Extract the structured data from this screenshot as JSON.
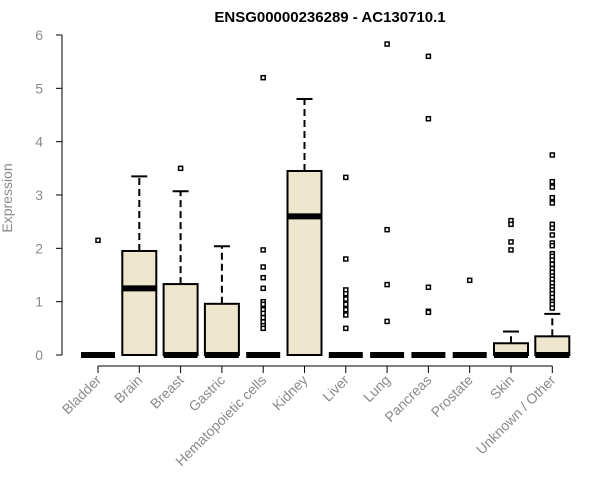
{
  "chart_data": {
    "type": "boxplot",
    "title": "ENSG00000236289 - AC130710.1",
    "xlabel": "",
    "ylabel": "Expression",
    "ylim": [
      0,
      6
    ],
    "yticks": [
      "0",
      "1",
      "2",
      "3",
      "4",
      "5",
      "6"
    ],
    "grid": false,
    "box_fill": "#ede6cc",
    "box_stroke": "#000000",
    "categories": [
      "Bladder",
      "Brain",
      "Breast",
      "Gastric",
      "Hematopoietic cells",
      "Kidney",
      "Liver",
      "Lung",
      "Pancreas",
      "Prostate",
      "Skin",
      "Unknown / Other"
    ],
    "boxes": [
      {
        "q1": 0,
        "median": 0,
        "q3": 0,
        "whisker_low": 0,
        "whisker_high": 0,
        "outliers": [
          2.15
        ]
      },
      {
        "q1": 0,
        "median": 1.25,
        "q3": 1.95,
        "whisker_low": 0,
        "whisker_high": 3.35,
        "outliers": []
      },
      {
        "q1": 0,
        "median": 0,
        "q3": 1.33,
        "whisker_low": 0,
        "whisker_high": 3.07,
        "outliers": [
          3.5
        ]
      },
      {
        "q1": 0,
        "median": 0,
        "q3": 0.96,
        "whisker_low": 0,
        "whisker_high": 2.04,
        "outliers": []
      },
      {
        "q1": 0,
        "median": 0,
        "q3": 0,
        "whisker_low": 0,
        "whisker_high": 0,
        "outliers": [
          5.2,
          1.97,
          1.65,
          1.45,
          1.25,
          1.0,
          0.95,
          0.85,
          0.78,
          0.7,
          0.62,
          0.55,
          0.5
        ]
      },
      {
        "q1": 0,
        "median": 2.6,
        "q3": 3.45,
        "whisker_low": 0,
        "whisker_high": 4.8,
        "outliers": []
      },
      {
        "q1": 0,
        "median": 0,
        "q3": 0,
        "whisker_low": 0,
        "whisker_high": 0,
        "outliers": [
          3.33,
          1.8,
          1.22,
          1.15,
          1.05,
          0.95,
          0.85,
          0.75,
          0.5
        ]
      },
      {
        "q1": 0,
        "median": 0,
        "q3": 0,
        "whisker_low": 0,
        "whisker_high": 0,
        "outliers": [
          5.83,
          2.35,
          1.32,
          0.63
        ]
      },
      {
        "q1": 0,
        "median": 0,
        "q3": 0,
        "whisker_low": 0,
        "whisker_high": 0,
        "outliers": [
          5.6,
          4.43,
          1.27,
          0.82,
          0.8
        ]
      },
      {
        "q1": 0,
        "median": 0,
        "q3": 0,
        "whisker_low": 0,
        "whisker_high": 0,
        "outliers": [
          1.4
        ]
      },
      {
        "q1": 0,
        "median": 0,
        "q3": 0.22,
        "whisker_low": 0,
        "whisker_high": 0.44,
        "outliers": [
          2.52,
          2.45,
          2.12,
          1.97
        ]
      },
      {
        "q1": 0,
        "median": 0,
        "q3": 0.35,
        "whisker_low": 0,
        "whisker_high": 0.77,
        "outliers": [
          3.75,
          3.25,
          3.15,
          2.95,
          2.85,
          2.45,
          2.38,
          2.25,
          2.1,
          2.05,
          1.9,
          1.85,
          1.78,
          1.7,
          1.62,
          1.55,
          1.48,
          1.42,
          1.35,
          1.28,
          1.22,
          1.15,
          1.08,
          1.0,
          0.95,
          0.88
        ]
      }
    ]
  }
}
